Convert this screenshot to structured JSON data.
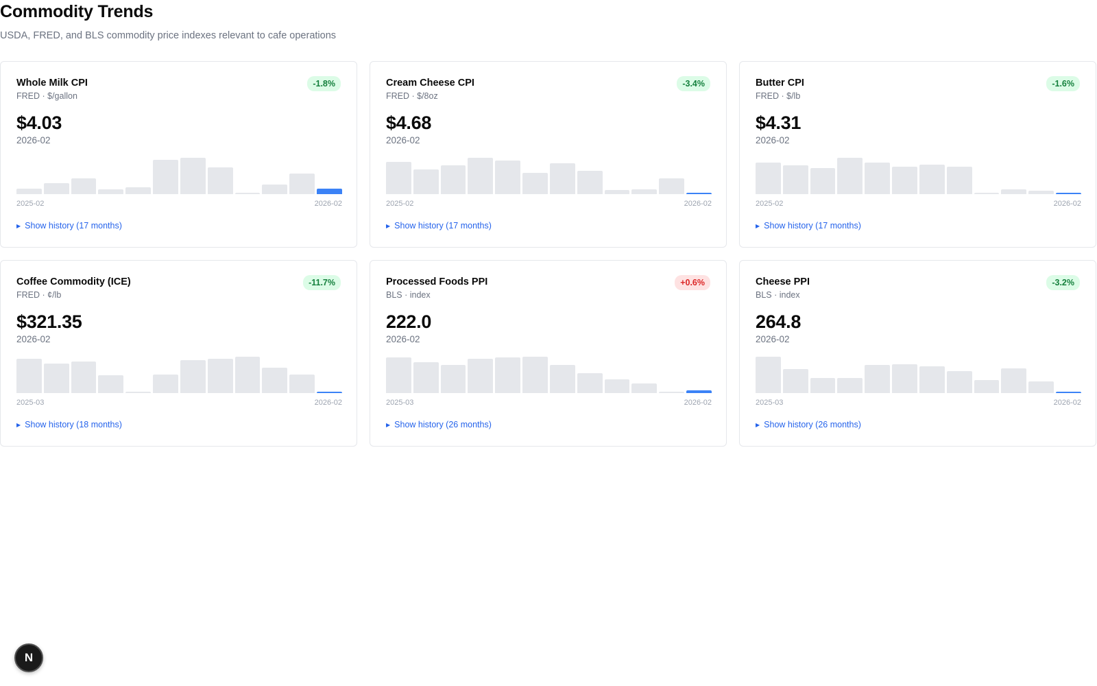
{
  "header": {
    "title": "Commodity Trends",
    "subtitle": "USDA, FRED, and BLS commodity price indexes relevant to cafe operations"
  },
  "cards": [
    {
      "title": "Whole Milk CPI",
      "source": "FRED · $/gallon",
      "change": "-1.8%",
      "direction": "down",
      "value": "$4.03",
      "period": "2026-02",
      "axis_start": "2025-02",
      "axis_end": "2026-02",
      "history_label": "Show history (17 months)",
      "bars": [
        0.15,
        0.3,
        0.43,
        0.13,
        0.18,
        0.95,
        1.0,
        0.74,
        0.03,
        0.27,
        0.57,
        0.16
      ]
    },
    {
      "title": "Cream Cheese CPI",
      "source": "FRED · $/8oz",
      "change": "-3.4%",
      "direction": "down",
      "value": "$4.68",
      "period": "2026-02",
      "axis_start": "2025-02",
      "axis_end": "2026-02",
      "history_label": "Show history (17 months)",
      "bars": [
        0.88,
        0.67,
        0.79,
        1.0,
        0.93,
        0.58,
        0.85,
        0.64,
        0.11,
        0.13,
        0.43,
        0.04
      ]
    },
    {
      "title": "Butter CPI",
      "source": "FRED · $/lb",
      "change": "-1.6%",
      "direction": "down",
      "value": "$4.31",
      "period": "2026-02",
      "axis_start": "2025-02",
      "axis_end": "2026-02",
      "history_label": "Show history (17 months)",
      "bars": [
        0.86,
        0.79,
        0.72,
        1.0,
        0.87,
        0.75,
        0.81,
        0.75,
        0.03,
        0.13,
        0.09,
        0.04
      ]
    },
    {
      "title": "Coffee Commodity (ICE)",
      "source": "FRED · ¢/lb",
      "change": "-11.7%",
      "direction": "down",
      "value": "$321.35",
      "period": "2026-02",
      "axis_start": "2025-03",
      "axis_end": "2026-02",
      "history_label": "Show history (18 months)",
      "bars": [
        0.94,
        0.82,
        0.87,
        0.49,
        0.03,
        0.51,
        0.9,
        0.94,
        1.0,
        0.69,
        0.5,
        0.04
      ]
    },
    {
      "title": "Processed Foods PPI",
      "source": "BLS · index",
      "change": "+0.6%",
      "direction": "up",
      "value": "222.0",
      "period": "2026-02",
      "axis_start": "2025-03",
      "axis_end": "2026-02",
      "history_label": "Show history (26 months)",
      "bars": [
        0.98,
        0.84,
        0.77,
        0.94,
        0.98,
        1.0,
        0.77,
        0.55,
        0.38,
        0.27,
        0.03,
        0.08
      ]
    },
    {
      "title": "Cheese PPI",
      "source": "BLS · index",
      "change": "-3.2%",
      "direction": "down",
      "value": "264.8",
      "period": "2026-02",
      "axis_start": "2025-03",
      "axis_end": "2026-02",
      "history_label": "Show history (26 months)",
      "bars": [
        1.0,
        0.66,
        0.42,
        0.42,
        0.77,
        0.8,
        0.74,
        0.6,
        0.35,
        0.68,
        0.32,
        0.04
      ]
    }
  ],
  "fab": {
    "label": "N"
  },
  "colors": {
    "bar": "#e5e7eb",
    "bar_current": "#3b82f6",
    "badge_down_bg": "#dcfce7",
    "badge_down_fg": "#15803d",
    "badge_up_bg": "#fee2e2",
    "badge_up_fg": "#dc2626",
    "link": "#2563eb"
  }
}
